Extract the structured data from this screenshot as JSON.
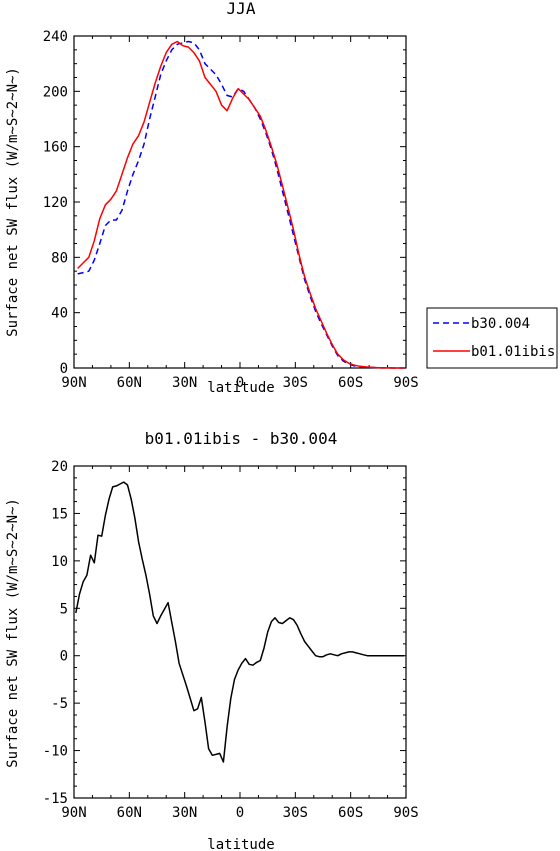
{
  "chart_data": [
    {
      "type": "line",
      "title": "JJA",
      "xlabel": "latitude",
      "ylabel": "Surface net SW flux (W/m~S~2~N~)",
      "xlim": [
        -90,
        90
      ],
      "ylim": [
        0,
        240
      ],
      "xticks": [
        -90,
        -60,
        -30,
        0,
        30,
        60,
        90
      ],
      "xtick_labels": [
        "90N",
        "60N",
        "30N",
        "0",
        "30S",
        "60S",
        "90S"
      ],
      "yticks": [
        0,
        40,
        80,
        120,
        160,
        200,
        240
      ],
      "ytick_labels": [
        "0",
        "40",
        "80",
        "120",
        "160",
        "200",
        "240"
      ],
      "legend_position": "right",
      "series": [
        {
          "name": "b30.004",
          "color": "#0000ff",
          "dash": "dashed",
          "x": [
            -88,
            -85,
            -82,
            -79,
            -76,
            -73,
            -70,
            -67,
            -64,
            -61,
            -58,
            -55,
            -52,
            -49,
            -46,
            -43,
            -40,
            -37,
            -34,
            -31,
            -28,
            -25,
            -22,
            -19,
            -16,
            -13,
            -10,
            -7,
            -4,
            -1,
            2,
            5,
            8,
            11,
            14,
            17,
            20,
            23,
            26,
            29,
            32,
            35,
            38,
            41,
            44,
            47,
            50,
            53,
            56,
            59,
            62,
            65,
            68,
            71,
            74,
            77,
            80,
            83,
            86,
            89
          ],
          "y": [
            68,
            69,
            70,
            78,
            90,
            103,
            107,
            107,
            114,
            128,
            140,
            150,
            162,
            180,
            196,
            212,
            222,
            230,
            234,
            235,
            236,
            235,
            230,
            220,
            216,
            212,
            205,
            197,
            196,
            202,
            200,
            194,
            188,
            180,
            170,
            158,
            144,
            128,
            112,
            96,
            80,
            64,
            52,
            41,
            32,
            24,
            16,
            9,
            5,
            3,
            1.5,
            1,
            0.6,
            0.4,
            0.2,
            0.1,
            0.05,
            0,
            0,
            0
          ]
        },
        {
          "name": "b01.01ibis",
          "color": "#ff0000",
          "dash": "solid",
          "x": [
            -88,
            -85,
            -82,
            -79,
            -76,
            -73,
            -70,
            -67,
            -64,
            -61,
            -58,
            -55,
            -52,
            -49,
            -46,
            -43,
            -40,
            -37,
            -34,
            -31,
            -28,
            -25,
            -22,
            -19,
            -16,
            -13,
            -10,
            -7,
            -4,
            -1,
            2,
            5,
            8,
            11,
            14,
            17,
            20,
            23,
            26,
            29,
            32,
            35,
            38,
            41,
            44,
            47,
            50,
            53,
            56,
            59,
            62,
            65,
            68,
            71,
            74,
            77,
            80,
            83,
            86,
            89
          ],
          "y": [
            72,
            76,
            80,
            92,
            108,
            118,
            122,
            128,
            140,
            152,
            162,
            168,
            178,
            192,
            206,
            218,
            228,
            234,
            236,
            233,
            232,
            228,
            222,
            210,
            205,
            200,
            190,
            186,
            195,
            202,
            198,
            194,
            188,
            182,
            172,
            160,
            147,
            132,
            116,
            100,
            82,
            66,
            54,
            43,
            34,
            25,
            17,
            10,
            6,
            3.5,
            2,
            1.2,
            0.8,
            0.5,
            0.3,
            0.1,
            0.05,
            0,
            0,
            0
          ]
        }
      ]
    },
    {
      "type": "line",
      "title": "b01.01ibis - b30.004",
      "xlabel": "latitude",
      "ylabel": "Surface net SW flux (W/m~S~2~N~)",
      "xlim": [
        -90,
        90
      ],
      "ylim": [
        -15,
        20
      ],
      "xticks": [
        -90,
        -60,
        -30,
        0,
        30,
        60,
        90
      ],
      "xtick_labels": [
        "90N",
        "60N",
        "30N",
        "0",
        "30S",
        "60S",
        "90S"
      ],
      "yticks": [
        -15,
        -10,
        -5,
        0,
        5,
        10,
        15,
        20
      ],
      "ytick_labels": [
        "-15",
        "-10",
        "-5",
        "0",
        "5",
        "10",
        "15",
        "20"
      ],
      "series": [
        {
          "color": "#000000",
          "dash": "solid",
          "x": [
            -89,
            -87,
            -85,
            -83,
            -81,
            -79,
            -77,
            -75,
            -73,
            -71,
            -69,
            -67,
            -65,
            -63,
            -61,
            -59,
            -57,
            -55,
            -53,
            -51,
            -49,
            -47,
            -45,
            -43,
            -41,
            -39,
            -37,
            -35,
            -33,
            -31,
            -29,
            -27,
            -25,
            -23,
            -21,
            -19,
            -17,
            -15,
            -13,
            -11,
            -9,
            -7,
            -5,
            -3,
            -1,
            1,
            3,
            5,
            7,
            9,
            11,
            13,
            15,
            17,
            19,
            21,
            23,
            25,
            27,
            29,
            31,
            33,
            35,
            37,
            39,
            41,
            43,
            45,
            47,
            49,
            51,
            53,
            55,
            57,
            59,
            61,
            63,
            65,
            67,
            69,
            71,
            73,
            75,
            77,
            79,
            81,
            83,
            85,
            87,
            89
          ],
          "y": [
            4.5,
            6.5,
            7.8,
            8.5,
            10.6,
            9.8,
            12.7,
            12.6,
            14.8,
            16.5,
            17.8,
            17.9,
            18.1,
            18.3,
            18.0,
            16.5,
            14.5,
            12,
            10.2,
            8.5,
            6.5,
            4.2,
            3.4,
            4.2,
            4.9,
            5.6,
            3.5,
            1.5,
            -0.8,
            -2.0,
            -3.2,
            -4.5,
            -5.8,
            -5.6,
            -4.4,
            -7.0,
            -9.8,
            -10.5,
            -10.4,
            -10.3,
            -11.2,
            -7.5,
            -4.5,
            -2.5,
            -1.5,
            -0.8,
            -0.3,
            -0.9,
            -1.0,
            -0.7,
            -0.5,
            0.8,
            2.5,
            3.6,
            4.0,
            3.5,
            3.4,
            3.7,
            4.0,
            3.8,
            3.2,
            2.3,
            1.5,
            1.0,
            0.5,
            0.0,
            -0.1,
            -0.1,
            0.1,
            0.2,
            0.1,
            0.0,
            0.2,
            0.3,
            0.4,
            0.4,
            0.3,
            0.2,
            0.1,
            0.0,
            0.0,
            0.0,
            0.0,
            0.0,
            0.0,
            0.0,
            0.0,
            0.0,
            0.0,
            0.0
          ]
        }
      ]
    }
  ]
}
